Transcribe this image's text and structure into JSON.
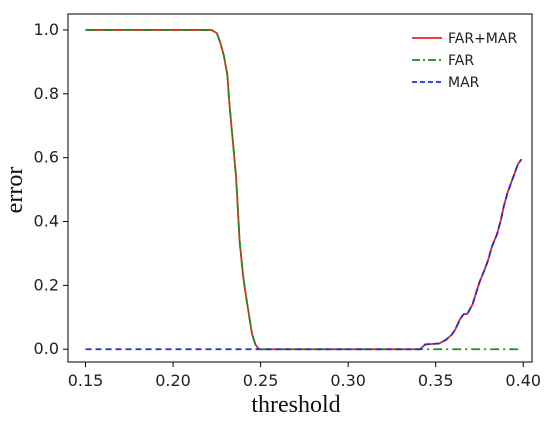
{
  "chart_data": {
    "type": "line",
    "title": "",
    "xlabel": "threshold",
    "ylabel": "error",
    "xlim": [
      0.14,
      0.405
    ],
    "ylim": [
      -0.04,
      1.05
    ],
    "xticks": [
      0.15,
      0.2,
      0.25,
      0.3,
      0.35,
      0.4
    ],
    "yticks": [
      0.0,
      0.2,
      0.4,
      0.6,
      0.8,
      1.0
    ],
    "xtick_labels": [
      "0.15",
      "0.20",
      "0.25",
      "0.30",
      "0.35",
      "0.40"
    ],
    "ytick_labels": [
      "0.0",
      "0.2",
      "0.4",
      "0.6",
      "0.8",
      "1.0"
    ],
    "grid": false,
    "legend_position": "top-right",
    "series": [
      {
        "name": "FAR+MAR",
        "color": "#e8251c",
        "style": "solid",
        "points": [
          [
            0.15,
            1.0
          ],
          [
            0.222,
            1.0
          ],
          [
            0.225,
            0.99
          ],
          [
            0.227,
            0.96
          ],
          [
            0.229,
            0.92
          ],
          [
            0.231,
            0.86
          ],
          [
            0.232,
            0.78
          ],
          [
            0.234,
            0.66
          ],
          [
            0.236,
            0.54
          ],
          [
            0.237,
            0.44
          ],
          [
            0.238,
            0.34
          ],
          [
            0.24,
            0.23
          ],
          [
            0.241,
            0.19
          ],
          [
            0.243,
            0.12
          ],
          [
            0.245,
            0.05
          ],
          [
            0.247,
            0.015
          ],
          [
            0.249,
            0.0
          ],
          [
            0.341,
            0.0
          ],
          [
            0.344,
            0.015
          ],
          [
            0.352,
            0.018
          ],
          [
            0.356,
            0.03
          ],
          [
            0.359,
            0.045
          ],
          [
            0.361,
            0.06
          ],
          [
            0.364,
            0.095
          ],
          [
            0.366,
            0.11
          ],
          [
            0.368,
            0.11
          ],
          [
            0.371,
            0.14
          ],
          [
            0.373,
            0.175
          ],
          [
            0.375,
            0.21
          ],
          [
            0.378,
            0.25
          ],
          [
            0.38,
            0.28
          ],
          [
            0.382,
            0.32
          ],
          [
            0.385,
            0.36
          ],
          [
            0.387,
            0.4
          ],
          [
            0.389,
            0.45
          ],
          [
            0.391,
            0.49
          ],
          [
            0.393,
            0.52
          ],
          [
            0.395,
            0.55
          ],
          [
            0.397,
            0.58
          ],
          [
            0.399,
            0.595
          ]
        ]
      },
      {
        "name": "FAR",
        "color": "#1f8b24",
        "style": "dashdot",
        "points": [
          [
            0.15,
            1.0
          ],
          [
            0.222,
            1.0
          ],
          [
            0.225,
            0.99
          ],
          [
            0.227,
            0.96
          ],
          [
            0.229,
            0.92
          ],
          [
            0.231,
            0.86
          ],
          [
            0.232,
            0.78
          ],
          [
            0.234,
            0.66
          ],
          [
            0.236,
            0.54
          ],
          [
            0.237,
            0.44
          ],
          [
            0.238,
            0.34
          ],
          [
            0.24,
            0.23
          ],
          [
            0.241,
            0.19
          ],
          [
            0.243,
            0.12
          ],
          [
            0.245,
            0.05
          ],
          [
            0.247,
            0.015
          ],
          [
            0.249,
            0.0
          ],
          [
            0.399,
            0.0
          ]
        ]
      },
      {
        "name": "MAR",
        "color": "#1c2fd6",
        "style": "dashed",
        "points": [
          [
            0.15,
            0.0
          ],
          [
            0.341,
            0.0
          ],
          [
            0.344,
            0.015
          ],
          [
            0.352,
            0.018
          ],
          [
            0.356,
            0.03
          ],
          [
            0.359,
            0.045
          ],
          [
            0.361,
            0.06
          ],
          [
            0.364,
            0.095
          ],
          [
            0.366,
            0.11
          ],
          [
            0.368,
            0.11
          ],
          [
            0.371,
            0.14
          ],
          [
            0.373,
            0.175
          ],
          [
            0.375,
            0.21
          ],
          [
            0.378,
            0.25
          ],
          [
            0.38,
            0.28
          ],
          [
            0.382,
            0.32
          ],
          [
            0.385,
            0.36
          ],
          [
            0.387,
            0.4
          ],
          [
            0.389,
            0.45
          ],
          [
            0.391,
            0.49
          ],
          [
            0.393,
            0.52
          ],
          [
            0.395,
            0.55
          ],
          [
            0.397,
            0.58
          ],
          [
            0.399,
            0.595
          ]
        ]
      }
    ]
  }
}
